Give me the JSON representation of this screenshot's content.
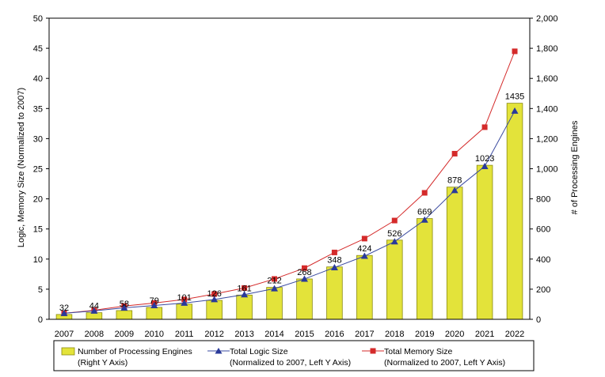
{
  "chart_data": {
    "type": "bar",
    "categories": [
      "2007",
      "2008",
      "2009",
      "2010",
      "2011",
      "2012",
      "2013",
      "2014",
      "2015",
      "2016",
      "2017",
      "2018",
      "2019",
      "2020",
      "2021",
      "2022"
    ],
    "series": [
      {
        "name": "Number of Processing Engines",
        "name_note": "(Right Y Axis)",
        "type": "bar",
        "axis": "right",
        "color": "#e3e33a",
        "values": [
          32,
          44,
          58,
          79,
          101,
          126,
          161,
          212,
          268,
          348,
          424,
          526,
          669,
          878,
          1023,
          1435
        ],
        "labels": [
          "32",
          "44",
          "58",
          "79",
          "101",
          "126",
          "161",
          "212",
          "268",
          "348",
          "424",
          "526",
          "669",
          "878",
          "1023",
          "1435"
        ]
      },
      {
        "name": "Total Logic Size",
        "name_note": "(Normalized to 2007, Left Y Axis)",
        "type": "line",
        "axis": "left",
        "color": "#3a4aa0",
        "marker": "triangle",
        "values": [
          1.0,
          1.4,
          1.9,
          2.3,
          2.7,
          3.3,
          4.1,
          5.1,
          6.7,
          8.6,
          10.5,
          12.9,
          16.5,
          21.4,
          25.4,
          34.6
        ]
      },
      {
        "name": "Total Memory Size",
        "name_note": "(Normalized to 2007, Left Y Axis)",
        "type": "line",
        "axis": "left",
        "color": "#d42a2a",
        "marker": "square",
        "values": [
          1.0,
          1.5,
          2.2,
          2.7,
          3.3,
          4.2,
          5.2,
          6.7,
          8.5,
          11.1,
          13.4,
          16.4,
          21.0,
          27.5,
          31.9,
          44.5
        ]
      }
    ],
    "ylabel": "Logic, Memory Size (Normalized to 2007)",
    "y2label": "# of Processing Engines",
    "ylim": [
      0,
      50
    ],
    "yticks": [
      "0",
      "5",
      "10",
      "15",
      "20",
      "25",
      "30",
      "35",
      "40",
      "45",
      "50"
    ],
    "y2lim": [
      0,
      2000
    ],
    "y2ticks": [
      "0",
      "200",
      "400",
      "600",
      "800",
      "1,000",
      "1,200",
      "1,400",
      "1,600",
      "1,800",
      "2,000"
    ],
    "grid": false,
    "legend": "bottom"
  }
}
